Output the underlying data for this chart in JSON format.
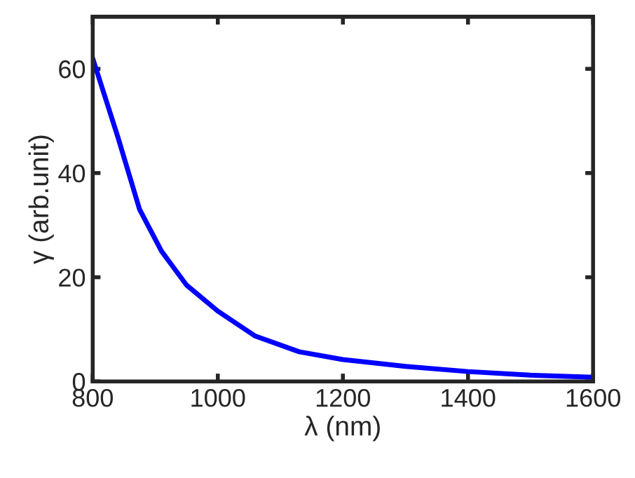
{
  "chart_data": {
    "type": "line",
    "xlabel": "λ (nm)",
    "ylabel": "γ (arb.unit)",
    "x": [
      800,
      840,
      875,
      910,
      950,
      1000,
      1060,
      1130,
      1200,
      1300,
      1400,
      1500,
      1600
    ],
    "series": [
      {
        "color": "#0000ff",
        "values": [
          62,
          47,
          33,
          25,
          18.5,
          13.5,
          8.7,
          5.7,
          4.2,
          2.9,
          1.9,
          1.2,
          0.8
        ]
      }
    ],
    "xlim": [
      800,
      1600
    ],
    "xticks": [
      800,
      1000,
      1200,
      1400,
      1600
    ],
    "ylim": [
      0,
      70
    ],
    "yticks": [
      0,
      20,
      40,
      60
    ],
    "grid": false,
    "legend": false,
    "line_style": "solid",
    "marker": "none"
  }
}
